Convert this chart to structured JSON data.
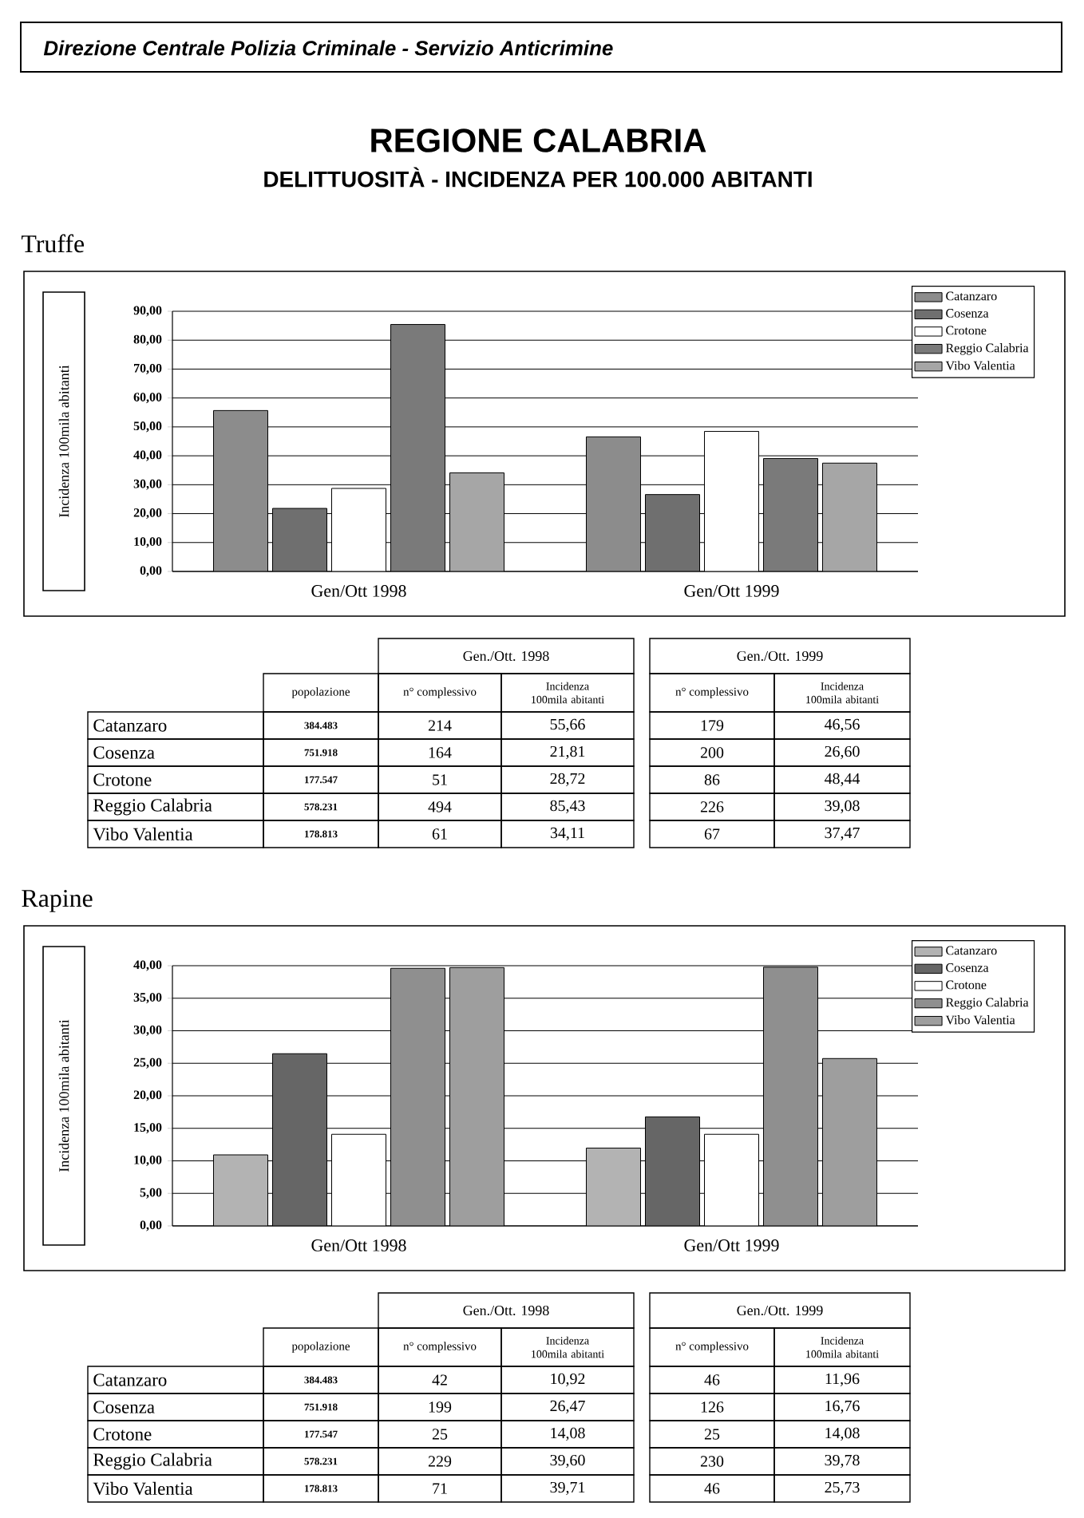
{
  "chart_data": [
    {
      "type": "other",
      "title": "REGIONE CALABRIA",
      "subtitle": "DELITTUOSITÀ - INCIDENZA PER 100.000 ABITANTI",
      "annotations": [
        "Direzione Centrale Polizia Criminale - Servizio Anticrimine"
      ]
    },
    {
      "type": "bar",
      "title": "Truffe",
      "ylabel": "Incidenza 100mila abitanti",
      "categories": [
        "Gen/Ott 1998",
        "Gen/Ott 1999"
      ],
      "series": [
        {
          "name": "Catanzaro",
          "color": "#8c8c8c",
          "values": [
            55.66,
            46.56
          ]
        },
        {
          "name": "Cosenza",
          "color": "#6f6f6f",
          "values": [
            21.81,
            26.6
          ]
        },
        {
          "name": "Crotone",
          "color": "#ffffff",
          "values": [
            28.72,
            48.44
          ]
        },
        {
          "name": "Reggio Calabria",
          "color": "#7a7a7a",
          "values": [
            85.43,
            39.08
          ]
        },
        {
          "name": "Vibo Valentia",
          "color": "#a6a6a6",
          "values": [
            34.11,
            37.47
          ]
        }
      ],
      "ylim": [
        0,
        90
      ],
      "yticks": [
        {
          "value": 0,
          "label": "0,00"
        },
        {
          "value": 10,
          "label": "10,00"
        },
        {
          "value": 20,
          "label": "20,00"
        },
        {
          "value": 30,
          "label": "30,00"
        },
        {
          "value": 40,
          "label": "40,00"
        },
        {
          "value": 50,
          "label": "50,00"
        },
        {
          "value": 60,
          "label": "60,00"
        },
        {
          "value": 70,
          "label": "70,00"
        },
        {
          "value": 80,
          "label": "80,00"
        },
        {
          "value": 90,
          "label": "90,00"
        }
      ],
      "grid": "y",
      "legend": "top right",
      "annotations": [
        "Gen./Ott. 1998",
        "Gen./Ott. 1999",
        "popolazione",
        "n° complessivo",
        "Incidenza 100mila abitanti",
        "n° complessivo",
        "Incidenza 100mila abitanti",
        "384.483",
        "751.918",
        "177.547",
        "578.231",
        "178.813",
        "214",
        "164",
        "51",
        "494",
        "61",
        "55,66",
        "21,81",
        "28,72",
        "85,43",
        "34,11",
        "179",
        "200",
        "86",
        "226",
        "67",
        "46,56",
        "26,60",
        "48,44",
        "39,08",
        "37,47"
      ]
    },
    {
      "type": "bar",
      "title": "Rapine",
      "ylabel": "Incidenza 100mila abitanti",
      "categories": [
        "Gen/Ott 1998",
        "Gen/Ott 1999"
      ],
      "series": [
        {
          "name": "Catanzaro",
          "color": "#b3b3b3",
          "values": [
            10.92,
            11.96
          ]
        },
        {
          "name": "Cosenza",
          "color": "#666666",
          "values": [
            26.47,
            16.76
          ]
        },
        {
          "name": "Crotone",
          "color": "#ffffff",
          "values": [
            14.08,
            14.08
          ]
        },
        {
          "name": "Reggio Calabria",
          "color": "#8f8f8f",
          "values": [
            39.6,
            39.78
          ]
        },
        {
          "name": "Vibo Valentia",
          "color": "#9e9e9e",
          "values": [
            39.71,
            25.73
          ]
        }
      ],
      "ylim": [
        0,
        40
      ],
      "yticks": [
        {
          "value": 0,
          "label": "0,00"
        },
        {
          "value": 5,
          "label": "5,00"
        },
        {
          "value": 10,
          "label": "10,00"
        },
        {
          "value": 15,
          "label": "15,00"
        },
        {
          "value": 20,
          "label": "20,00"
        },
        {
          "value": 25,
          "label": "25,00"
        },
        {
          "value": 30,
          "label": "30,00"
        },
        {
          "value": 35,
          "label": "35,00"
        },
        {
          "value": 40,
          "label": "40,00"
        }
      ],
      "grid": "y",
      "legend": "top right",
      "annotations": [
        "Gen./Ott. 1998",
        "Gen./Ott. 1999",
        "popolazione",
        "n° complessivo",
        "Incidenza 100mila abitanti",
        "n° complessivo",
        "Incidenza 100mila abitanti",
        "384.483",
        "751.918",
        "177.547",
        "578.231",
        "178.813",
        "42",
        "199",
        "25",
        "229",
        "71",
        "10,92",
        "26,47",
        "14,08",
        "39,60",
        "39,71",
        "46",
        "126",
        "25",
        "230",
        "46",
        "11,96",
        "16,76",
        "14,08",
        "39,78",
        "25,73"
      ]
    }
  ]
}
